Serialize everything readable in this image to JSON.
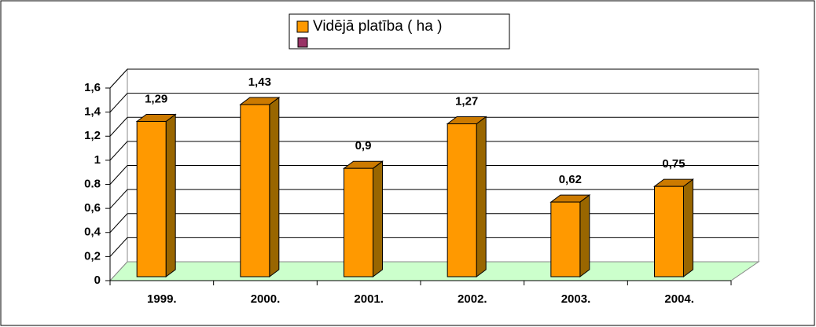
{
  "chart_data": {
    "type": "bar3d",
    "categories": [
      "1999.",
      "2000.",
      "2001.",
      "2002.",
      "2003.",
      "2004."
    ],
    "series": [
      {
        "name": "Vidējā platība ( ha )",
        "color": "#ff9900",
        "values": [
          1.29,
          1.43,
          0.9,
          1.27,
          0.62,
          0.75
        ],
        "value_labels": [
          "1,29",
          "1,43",
          "0,9",
          "1,27",
          "0,62",
          "0,75"
        ]
      }
    ],
    "ylim": [
      0,
      1.6
    ],
    "yticks": [
      0,
      {
        "value": 0.2,
        "label": "0,2"
      },
      {
        "value": 0.4,
        "label": "0,4"
      },
      {
        "value": 0.6,
        "label": "0,6"
      },
      0.8,
      1,
      {
        "value": 1.2,
        "label": "1,2"
      },
      {
        "value": 1.4,
        "label": "1,4"
      },
      {
        "value": 1.6,
        "label": "1,6"
      }
    ],
    "grid": true,
    "legend": "top"
  }
}
